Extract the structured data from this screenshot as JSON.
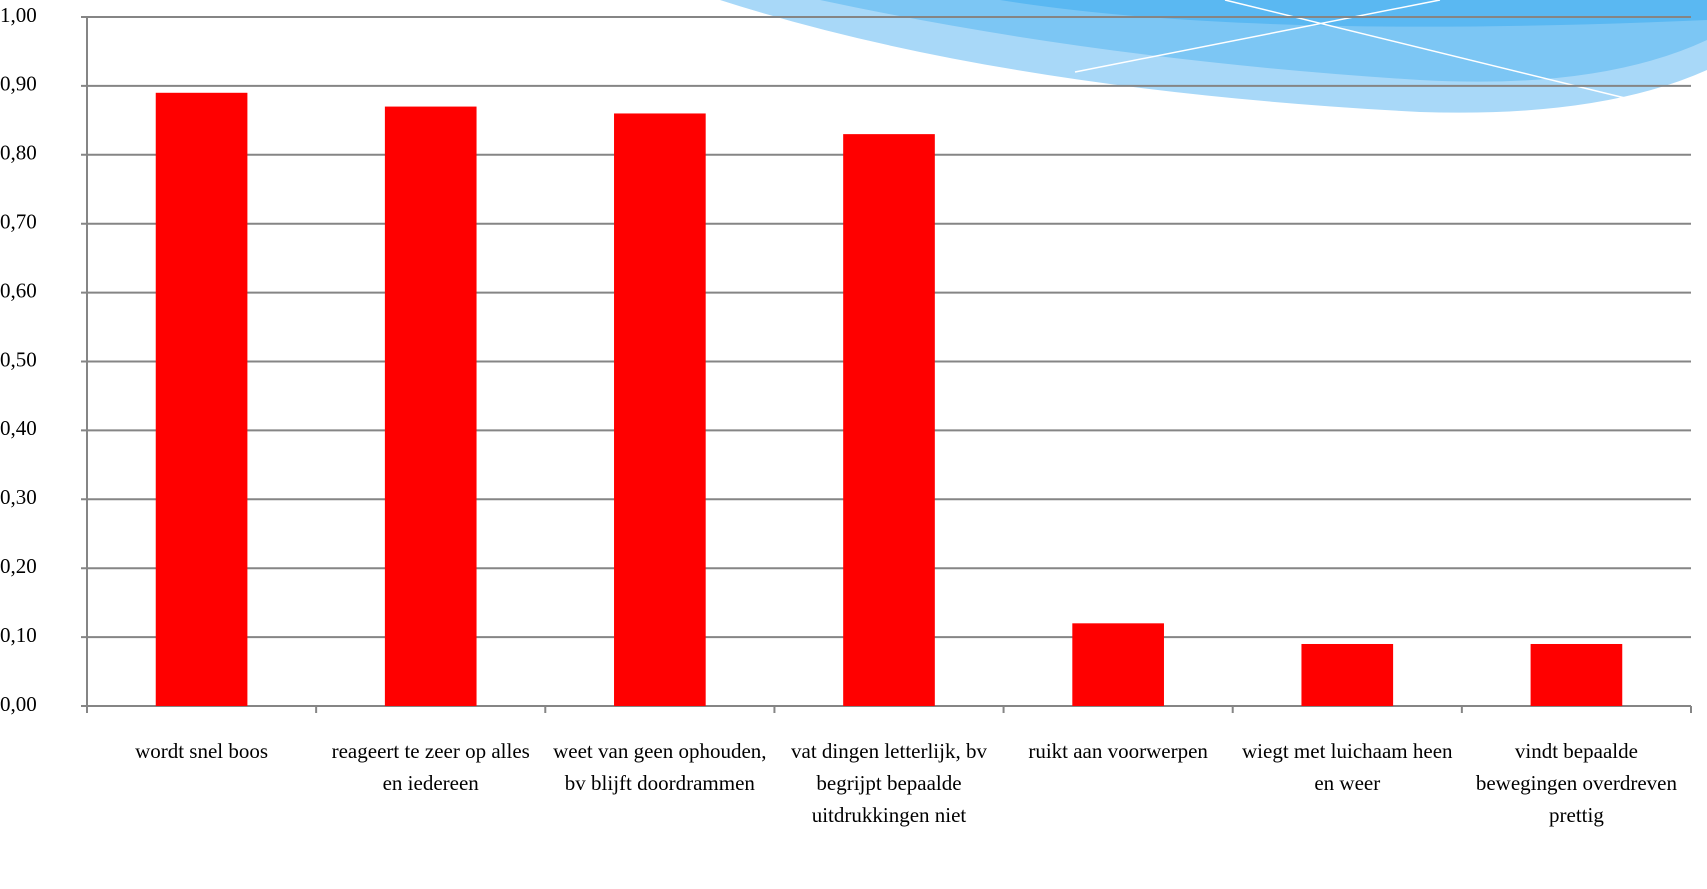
{
  "chart_data": {
    "type": "bar",
    "categories": [
      "wordt snel boos",
      "reageert te zeer op alles en iedereen",
      "weet van geen ophouden, bv blijft doordrammen",
      "vat dingen letterlijk, bv begrijpt bepaalde uitdrukkingen niet",
      "ruikt aan voorwerpen",
      "wiegt met luichaam heen en weer",
      "vindt bepaalde bewegingen overdreven prettig"
    ],
    "values": [
      0.89,
      0.87,
      0.86,
      0.83,
      0.12,
      0.09,
      0.09
    ],
    "color": "#ff0000",
    "ylim": [
      0,
      1
    ],
    "yticks": [
      {
        "value": 0,
        "label": "0,00"
      },
      {
        "value": 0.1,
        "label": "0,10"
      },
      {
        "value": 0.2,
        "label": "0,20"
      },
      {
        "value": 0.3,
        "label": "0,30"
      },
      {
        "value": 0.4,
        "label": "0,40"
      },
      {
        "value": 0.5,
        "label": "0,50"
      },
      {
        "value": 0.6,
        "label": "0,60"
      },
      {
        "value": 0.7,
        "label": "0,70"
      },
      {
        "value": 0.8,
        "label": "0,80"
      },
      {
        "value": 0.9,
        "label": "0,90"
      },
      {
        "value": 1,
        "label": "1,00"
      }
    ],
    "grid": true
  }
}
